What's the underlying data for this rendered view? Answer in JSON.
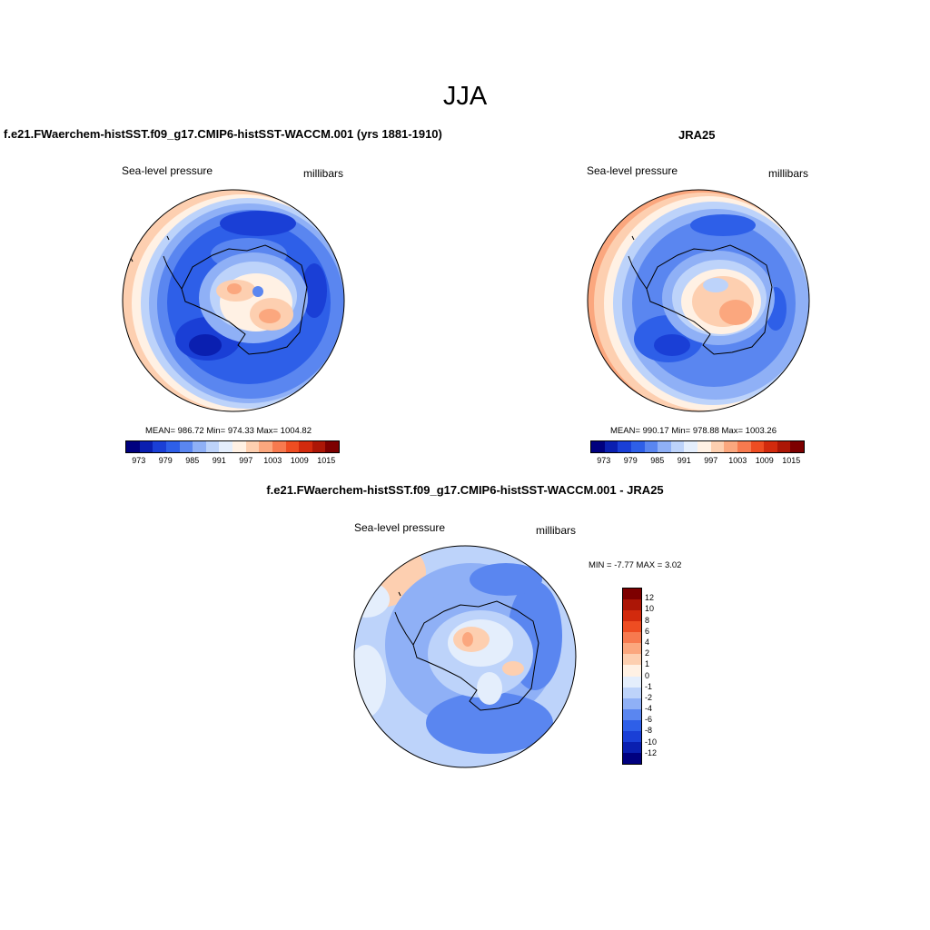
{
  "figure": {
    "season": "JJA"
  },
  "panels": [
    {
      "title": "f.e21.FWaerchem-histSST.f09_g17.CMIP6-histSST-WACCM.001 (yrs 1881-1910)",
      "left_label": "Sea-level pressure",
      "right_label": "millibars",
      "stats": "MEAN= 986.72  Min= 974.33  Max= 1004.82"
    },
    {
      "title": "JRA25",
      "left_label": "Sea-level pressure",
      "right_label": "millibars",
      "stats": "MEAN= 990.17  Min= 978.88  Max= 1003.26"
    },
    {
      "title": "f.e21.FWaerchem-histSST.f09_g17.CMIP6-histSST-WACCM.001 - JRA25",
      "left_label": "Sea-level pressure",
      "right_label": "millibars",
      "stats": "MIN =  -7.77 MAX =   3.02"
    }
  ],
  "colorbar_abs": {
    "colors": [
      "#00007f",
      "#0a1fb0",
      "#1a3fd6",
      "#2e5fe8",
      "#5a86f0",
      "#8fb0f6",
      "#bdd3fa",
      "#e4eefc",
      "#fff1e4",
      "#fdcfb0",
      "#fba77e",
      "#f77a4f",
      "#ee4d22",
      "#d22a0d",
      "#ac1606",
      "#7d0000"
    ],
    "tick_labels": [
      "973",
      "979",
      "985",
      "991",
      "997",
      "1003",
      "1009",
      "1015"
    ]
  },
  "colorbar_diff": {
    "colors": [
      "#7d0000",
      "#ac1606",
      "#d22a0d",
      "#ee4d22",
      "#f77a4f",
      "#fba77e",
      "#fdcfb0",
      "#fff1e4",
      "#e4eefc",
      "#bdd3fa",
      "#8fb0f6",
      "#5a86f0",
      "#2e5fe8",
      "#1a3fd6",
      "#0a1fb0",
      "#00007f"
    ],
    "tick_labels": [
      "12",
      "10",
      "8",
      "6",
      "4",
      "2",
      "1",
      "0",
      "-1",
      "-2",
      "-4",
      "-6",
      "-8",
      "-10",
      "-12"
    ]
  },
  "map_colors": {
    "deep_blue": "#0a1fb0",
    "mid_blue": "#2e5fe8",
    "light_blue": "#5a86f0",
    "pale_blue": "#8fb0f6",
    "paler_blue": "#bdd3fa",
    "white_blue": "#e4eefc",
    "cream": "#fff1e4",
    "peach": "#fdcfb0",
    "salmon": "#fba77e",
    "orange": "#f77a4f"
  }
}
